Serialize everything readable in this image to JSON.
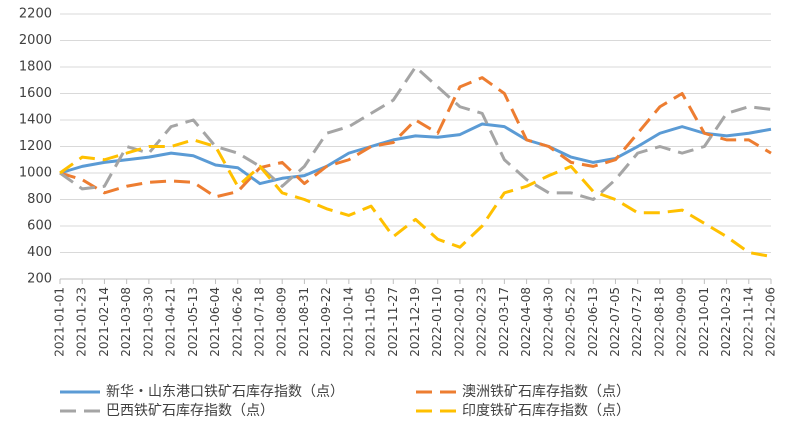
{
  "chart_data": {
    "type": "line",
    "categories": [
      "2021-01-01",
      "2021-01-23",
      "2021-02-14",
      "2021-03-08",
      "2021-03-30",
      "2021-04-21",
      "2021-05-13",
      "2021-06-04",
      "2021-06-26",
      "2021-07-18",
      "2021-08-09",
      "2021-08-31",
      "2021-09-22",
      "2021-10-14",
      "2021-11-05",
      "2021-11-27",
      "2021-12-19",
      "2022-01-10",
      "2022-02-01",
      "2022-02-23",
      "2022-03-17",
      "2022-04-08",
      "2022-04-30",
      "2022-05-22",
      "2022-06-13",
      "2022-07-05",
      "2022-07-27",
      "2022-08-18",
      "2022-09-09",
      "2022-10-01",
      "2022-10-23",
      "2022-11-14",
      "2022-12-06"
    ],
    "series": [
      {
        "name": "新华・山东港口铁矿石库存指数（点）",
        "color": "#5b9bd5",
        "dashed": false,
        "values": [
          1000,
          1050,
          1080,
          1100,
          1120,
          1150,
          1130,
          1060,
          1040,
          920,
          960,
          980,
          1050,
          1150,
          1200,
          1250,
          1280,
          1270,
          1290,
          1370,
          1350,
          1250,
          1200,
          1120,
          1080,
          1110,
          1200,
          1300,
          1350,
          1300,
          1280,
          1300,
          1330
        ]
      },
      {
        "name": "澳洲铁矿石库存指数（点）",
        "color": "#ed7d31",
        "dashed": true,
        "values": [
          1000,
          950,
          850,
          900,
          930,
          940,
          930,
          820,
          860,
          1040,
          1080,
          920,
          1050,
          1100,
          1200,
          1230,
          1400,
          1300,
          1650,
          1720,
          1600,
          1250,
          1200,
          1080,
          1050,
          1100,
          1300,
          1500,
          1600,
          1300,
          1250,
          1250,
          1150
        ]
      },
      {
        "name": "巴西铁矿石库存指数（点）",
        "color": "#a5a5a5",
        "dashed": true,
        "values": [
          1000,
          880,
          900,
          1200,
          1150,
          1350,
          1400,
          1200,
          1150,
          1050,
          900,
          1050,
          1300,
          1350,
          1450,
          1550,
          1800,
          1650,
          1500,
          1450,
          1100,
          950,
          850,
          850,
          800,
          950,
          1150,
          1200,
          1150,
          1200,
          1450,
          1500,
          1480
        ]
      },
      {
        "name": "印度铁矿石库存指数（点）",
        "color": "#ffc000",
        "dashed": true,
        "values": [
          1000,
          1120,
          1100,
          1150,
          1200,
          1200,
          1250,
          1200,
          900,
          1050,
          850,
          800,
          730,
          680,
          750,
          520,
          650,
          500,
          440,
          600,
          850,
          900,
          980,
          1050,
          860,
          800,
          700,
          700,
          720,
          620,
          520,
          400,
          370
        ]
      }
    ],
    "ylim": [
      200,
      2200
    ],
    "yticks": [
      200,
      400,
      600,
      800,
      1000,
      1200,
      1400,
      1600,
      1800,
      2000,
      2200
    ],
    "grid": true,
    "legend": "bottom"
  }
}
